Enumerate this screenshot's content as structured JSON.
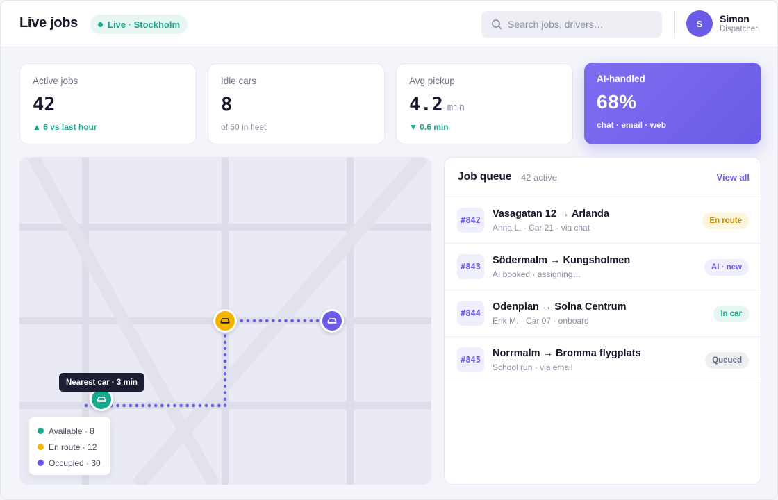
{
  "header": {
    "title": "Live jobs",
    "live_label": "Live · Stockholm",
    "search_placeholder": "Search jobs, drivers…",
    "user": {
      "initial": "S",
      "name": "Simon",
      "role": "Dispatcher"
    }
  },
  "stats": [
    {
      "label": "Active jobs",
      "value": "42",
      "sub": "▲ 6 vs last hour"
    },
    {
      "label": "Idle cars",
      "value": "8",
      "sub": "of 50 in fleet"
    },
    {
      "label": "Avg pickup",
      "value": "4.2",
      "unit": "min",
      "sub": "▼ 0.6 min"
    },
    {
      "label": "AI-handled",
      "value": "68%",
      "sub": "chat · email · web"
    }
  ],
  "map": {
    "tooltip": "Nearest car · 3 min",
    "legend": [
      {
        "label": "Available · 8",
        "color": "#17a98e"
      },
      {
        "label": "En route · 12",
        "color": "#f4b400"
      },
      {
        "label": "Occupied · 30",
        "color": "#6b5ce7"
      }
    ],
    "pins": [
      {
        "status": "en-route",
        "color": "#f4b400",
        "icon": "car-icon"
      },
      {
        "status": "occupied",
        "color": "#6b5ce7",
        "icon": "car-icon"
      },
      {
        "status": "available",
        "color": "#17a98e",
        "icon": "car-icon"
      }
    ],
    "route_color": "#6b5ce7"
  },
  "queue": {
    "title": "Job queue",
    "count": "42 active",
    "view_all": "View all",
    "jobs": [
      {
        "id": "#842",
        "route": "Vasagatan 12 → Arlanda",
        "meta": "Anna L. · Car 21 · via chat",
        "status": "En route",
        "badge_bg": "#fdf4dc",
        "badge_fg": "#c48a06"
      },
      {
        "id": "#843",
        "route": "Södermalm → Kungsholmen",
        "meta": "AI booked · assigning…",
        "status": "AI · new",
        "badge_bg": "#efeefc",
        "badge_fg": "#6b5ce7"
      },
      {
        "id": "#844",
        "route": "Odenplan → Solna Centrum",
        "meta": "Erik M. · Car 07 · onboard",
        "status": "In car",
        "badge_bg": "#e4f6f1",
        "badge_fg": "#17a98e"
      },
      {
        "id": "#845",
        "route": "Norrmalm → Bromma flygplats",
        "meta": "School run · via email",
        "status": "Queued",
        "badge_bg": "#eeeff3",
        "badge_fg": "#5f6175"
      }
    ]
  },
  "colors": {
    "accent": "#6b5ce7",
    "success": "#17a98e",
    "warning": "#f4b400"
  }
}
